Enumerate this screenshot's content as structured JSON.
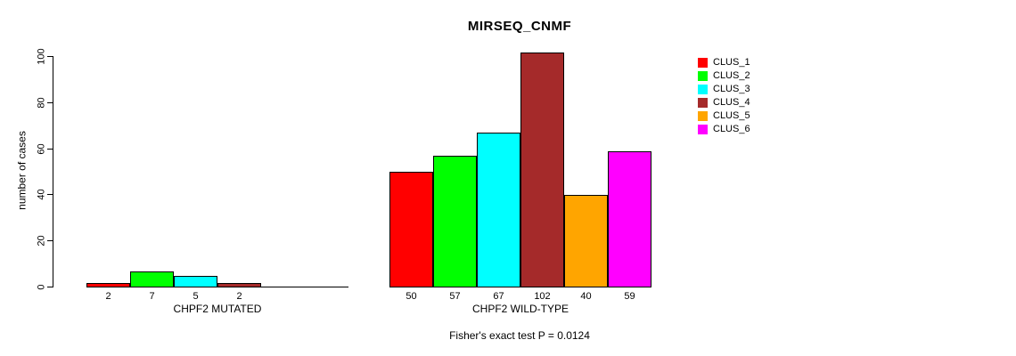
{
  "chart_data": {
    "type": "bar",
    "title": "MIRSEQ_CNMF",
    "ylabel": "number of cases",
    "xlabel": "",
    "ylim": [
      0,
      100
    ],
    "yticks": [
      0,
      20,
      40,
      60,
      80,
      100
    ],
    "categories": [
      "CLUS_1",
      "CLUS_2",
      "CLUS_3",
      "CLUS_4",
      "CLUS_5",
      "CLUS_6"
    ],
    "colors": [
      "#ff0000",
      "#00ff00",
      "#00ffff",
      "#a52a2a",
      "#ffa500",
      "#ff00ff"
    ],
    "groups": [
      {
        "label": "CHPF2 MUTATED",
        "values": [
          2,
          7,
          5,
          2,
          0,
          0
        ]
      },
      {
        "label": "CHPF2 WILD-TYPE",
        "values": [
          50,
          57,
          67,
          102,
          40,
          59
        ]
      }
    ],
    "legend": {
      "position": "right",
      "entries": [
        "CLUS_1",
        "CLUS_2",
        "CLUS_3",
        "CLUS_4",
        "CLUS_5",
        "CLUS_6"
      ]
    },
    "annotation": "Fisher's exact test P = 0.0124",
    "grid": false,
    "bar_value_labels_shown": true
  }
}
